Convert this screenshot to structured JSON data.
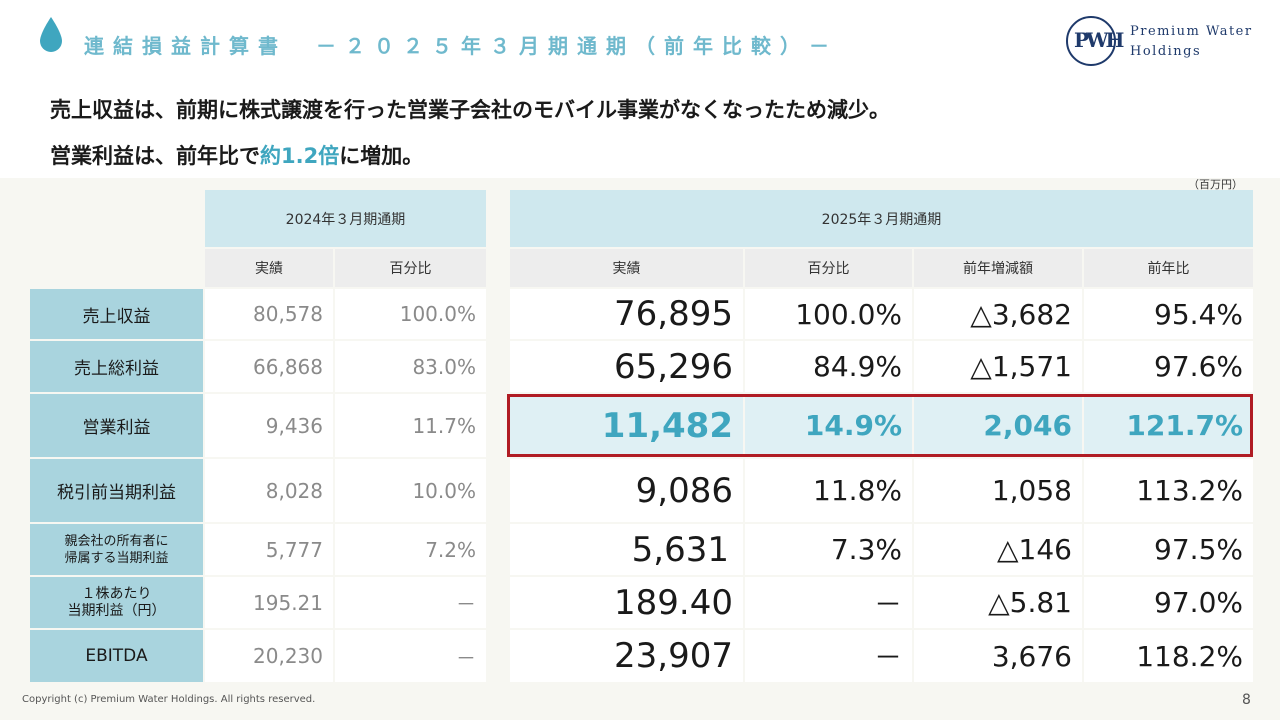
{
  "header": {
    "title": "連結損益計算書　－２０２５年３月期通期（前年比較）－",
    "logo_text_1": "Premium Water",
    "logo_text_2": "Holdings",
    "logo_mark": "PWH"
  },
  "headline": {
    "line1": "売上収益は、前期に株式譲渡を行った営業子会社のモバイル事業がなくなったため減少。",
    "line2_pre": "営業利益は、前年比で",
    "line2_accent": "約1.2倍",
    "line2_post": "に増加。"
  },
  "unit_note": "（百万円）",
  "table": {
    "period_prev": "2024年３月期通期",
    "period_curr": "2025年３月期通期",
    "cols_prev": [
      "実績",
      "百分比"
    ],
    "cols_curr": [
      "実績",
      "百分比",
      "前年増減額",
      "前年比"
    ],
    "rows": [
      {
        "label": "売上収益",
        "prev_actual": "80,578",
        "prev_ratio": "100.0%",
        "curr_actual": "76,895",
        "curr_ratio": "100.0%",
        "change": "△3,682",
        "yoy": "95.4%"
      },
      {
        "label": "売上総利益",
        "prev_actual": "66,868",
        "prev_ratio": "83.0%",
        "curr_actual": "65,296",
        "curr_ratio": "84.9%",
        "change": "△1,571",
        "yoy": "97.6%"
      },
      {
        "label": "営業利益",
        "prev_actual": "9,436",
        "prev_ratio": "11.7%",
        "curr_actual": "11,482",
        "curr_ratio": "14.9%",
        "change": "2,046",
        "yoy": "121.7%"
      },
      {
        "label": "税引前当期利益",
        "prev_actual": "8,028",
        "prev_ratio": "10.0%",
        "curr_actual": "9,086",
        "curr_ratio": "11.8%",
        "change": "1,058",
        "yoy": "113.2%"
      },
      {
        "label_1": "親会社の所有者に",
        "label_2": "帰属する当期利益",
        "prev_actual": "5,777",
        "prev_ratio": "7.2%",
        "curr_actual": "5,631",
        "curr_ratio": "7.3%",
        "change": "△146",
        "yoy": "97.5%"
      },
      {
        "label_1": "１株あたり",
        "label_2": "当期利益（円）",
        "prev_actual": "195.21",
        "prev_ratio": "－",
        "curr_actual": "189.40",
        "curr_ratio": "－",
        "change": "△5.81",
        "yoy": "97.0%"
      },
      {
        "label": "EBITDA",
        "prev_actual": "20,230",
        "prev_ratio": "－",
        "curr_actual": "23,907",
        "curr_ratio": "－",
        "change": "3,676",
        "yoy": "118.2%"
      }
    ]
  },
  "footer": {
    "copyright": "Copyright (c) Premium Water Holdings. All rights reserved.",
    "page": "8"
  },
  "colors": {
    "accent": "#3fa6bf",
    "header_cell": "#cfe8ee",
    "label_cell": "#a9d4de",
    "highlight_border": "#b01c24",
    "logo": "#1f3a6b"
  }
}
